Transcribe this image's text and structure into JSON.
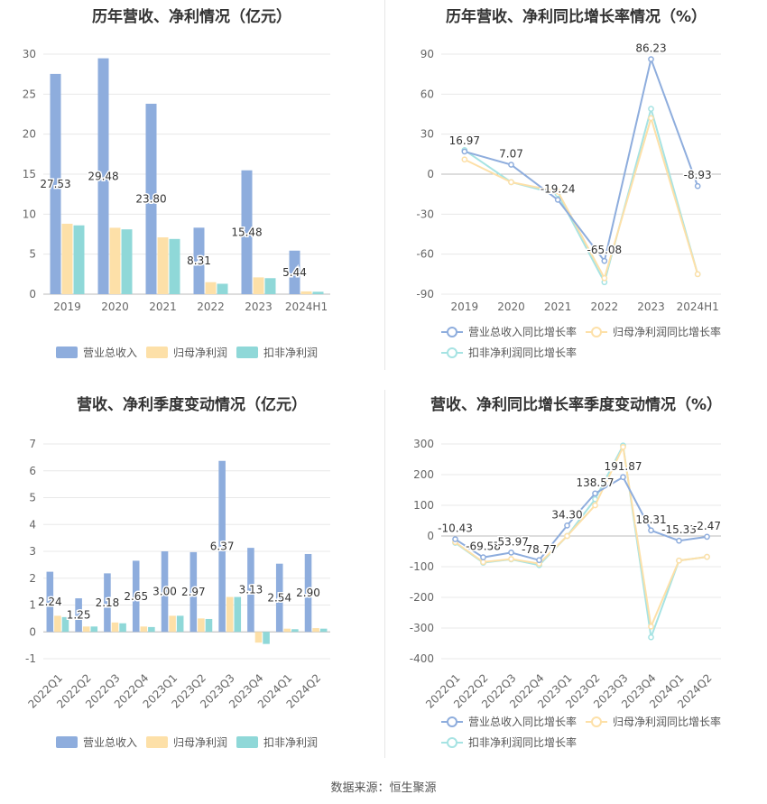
{
  "colors": {
    "revenue": "#8eaddd",
    "net_profit": "#fde0a8",
    "deducted_profit": "#8fd8d8",
    "revenue_line": "#8eaddd",
    "net_profit_line": "#fde0a8",
    "deducted_profit_line": "#a6e3e3",
    "grid": "#e8e8e8",
    "axis_text": "#666666",
    "label_text": "#333333"
  },
  "footer": {
    "source": "数据来源：恒生聚源"
  },
  "chart_data": [
    {
      "id": "annual-amount",
      "type": "bar",
      "title": "历年营收、净利情况（亿元）",
      "categories": [
        "2019",
        "2020",
        "2021",
        "2022",
        "2023",
        "2024H1"
      ],
      "ylim": [
        0,
        30
      ],
      "yticks": [
        0,
        5,
        10,
        15,
        20,
        25,
        30
      ],
      "series": [
        {
          "name": "营业总收入",
          "values": [
            27.53,
            29.48,
            23.8,
            8.31,
            15.48,
            5.44
          ]
        },
        {
          "name": "归母净利润",
          "values": [
            8.8,
            8.3,
            7.1,
            1.5,
            2.1,
            0.35
          ]
        },
        {
          "name": "扣非净利润",
          "values": [
            8.6,
            8.1,
            6.9,
            1.3,
            2.0,
            0.3
          ]
        }
      ],
      "data_labels": [
        "27.53",
        "29.48",
        "23.80",
        "8.31",
        "15.48",
        "5.44"
      ],
      "legend": "bottom"
    },
    {
      "id": "annual-growth",
      "type": "line",
      "title": "历年营收、净利同比增长率情况（%）",
      "categories": [
        "2019",
        "2020",
        "2021",
        "2022",
        "2023",
        "2024H1"
      ],
      "ylim": [
        -90,
        90
      ],
      "yticks": [
        -90,
        -60,
        -30,
        0,
        30,
        60,
        90
      ],
      "series": [
        {
          "name": "营业总收入同比增长率",
          "values": [
            16.97,
            7.07,
            -19.24,
            -65.08,
            86.23,
            -8.93
          ]
        },
        {
          "name": "归母净利润同比增长率",
          "values": [
            11,
            -6,
            -13,
            -78,
            42,
            -75
          ]
        },
        {
          "name": "扣非净利润同比增长率",
          "values": [
            18,
            -6,
            -15,
            -81,
            49,
            -75
          ]
        }
      ],
      "data_labels": [
        "16.97",
        "7.07",
        "-19.24",
        "-65.08",
        "86.23",
        "-8.93"
      ],
      "legend": "bottom"
    },
    {
      "id": "quarterly-amount",
      "type": "bar",
      "title": "营收、净利季度变动情况（亿元）",
      "categories": [
        "2022Q1",
        "2022Q2",
        "2022Q3",
        "2022Q4",
        "2023Q1",
        "2023Q2",
        "2023Q3",
        "2023Q4",
        "2024Q1",
        "2024Q2"
      ],
      "ylim": [
        -1,
        7
      ],
      "yticks": [
        -1,
        0,
        1,
        2,
        3,
        4,
        5,
        6,
        7
      ],
      "series": [
        {
          "name": "营业总收入",
          "values": [
            2.24,
            1.25,
            2.18,
            2.65,
            3.0,
            2.97,
            6.37,
            3.13,
            2.54,
            2.9
          ]
        },
        {
          "name": "归母净利润",
          "values": [
            0.6,
            0.2,
            0.35,
            0.2,
            0.6,
            0.5,
            1.3,
            -0.4,
            0.12,
            0.14
          ]
        },
        {
          "name": "扣非净利润",
          "values": [
            0.55,
            0.2,
            0.32,
            0.18,
            0.6,
            0.48,
            1.3,
            -0.45,
            0.1,
            0.12
          ]
        }
      ],
      "data_labels": [
        "2.24",
        "1.25",
        "2.18",
        "2.65",
        "3.00",
        "2.97",
        "6.37",
        "3.13",
        "2.54",
        "2.90"
      ],
      "legend": "bottom"
    },
    {
      "id": "quarterly-growth",
      "type": "line",
      "title": "营收、净利同比增长率季度变动情况（%）",
      "categories": [
        "2022Q1",
        "2022Q2",
        "2022Q3",
        "2022Q4",
        "2023Q1",
        "2023Q2",
        "2023Q3",
        "2023Q4",
        "2024Q1",
        "2024Q2"
      ],
      "ylim": [
        -400,
        300
      ],
      "yticks": [
        -400,
        -300,
        -200,
        -100,
        0,
        100,
        200,
        300
      ],
      "series": [
        {
          "name": "营业总收入同比增长率",
          "values": [
            -10.43,
            -69.58,
            -53.97,
            -78.77,
            34.3,
            138.57,
            191.87,
            18.31,
            -15.33,
            -2.47
          ]
        },
        {
          "name": "归母净利润同比增长率",
          "values": [
            -20,
            -85,
            -75,
            -90,
            0,
            100,
            290,
            -295,
            -80,
            -68
          ]
        },
        {
          "name": "扣非净利润同比增长率",
          "values": [
            -22,
            -87,
            -76,
            -95,
            0,
            120,
            295,
            -330,
            -80,
            -68
          ]
        }
      ],
      "data_labels": [
        "-10.43",
        "-69.58",
        "-53.97",
        "-78.77",
        "34.30",
        "138.57",
        "191.87",
        "18.31",
        "-15.33",
        "-2.47"
      ],
      "legend": "bottom"
    }
  ]
}
